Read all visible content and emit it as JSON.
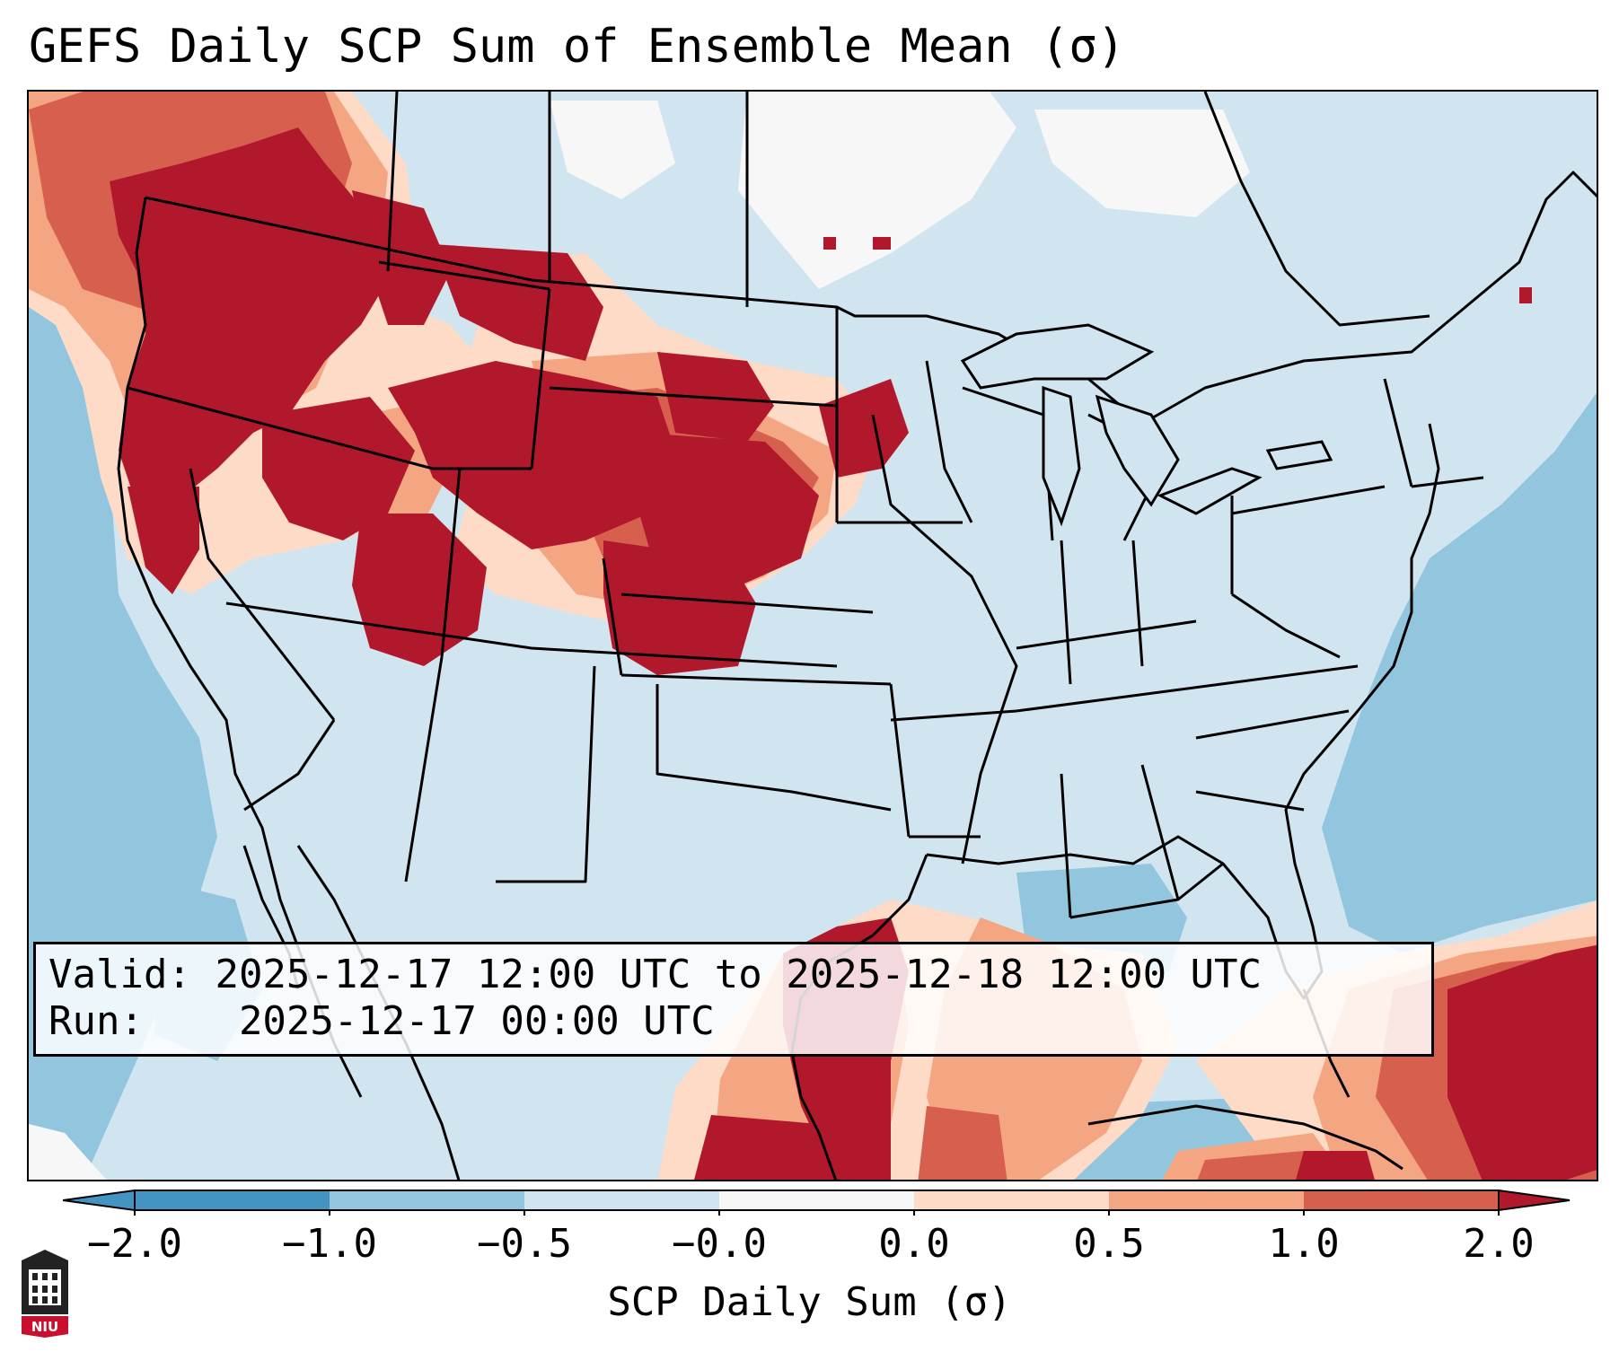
{
  "title": "GEFS Daily SCP Sum of Ensemble Mean (σ)",
  "info": {
    "valid_label": "Valid:",
    "valid_value": "2025-12-17 12:00 UTC to 2025-12-18 12:00 UTC",
    "run_label": "Run:",
    "run_value": "2025-12-17 00:00 UTC"
  },
  "colorbar": {
    "label": "SCP Daily Sum (σ)",
    "ticks": [
      "−2.0",
      "−1.0",
      "−0.5",
      "−0.0",
      "0.0",
      "0.5",
      "1.0",
      "2.0"
    ],
    "colors": {
      "under": "#4393c3",
      "bin_m2_m1": "#4393c3",
      "bin_m1_m05": "#92c5de",
      "bin_m05_0": "#d1e5f0",
      "bin_0": "#f7f7f7",
      "bin_0_05": "#fddbc7",
      "bin_05_1": "#f4a582",
      "bin_1_2": "#d6604d",
      "over": "#b2182b"
    }
  },
  "map_colors": {
    "ocean_neg": "#92c5de",
    "land_neg": "#d1e5f0",
    "pos_light": "#fddbc7",
    "pos_mid": "#f4a582",
    "pos_high": "#d6604d",
    "pos_max": "#b2182b"
  },
  "logo": {
    "text": "NIU"
  }
}
